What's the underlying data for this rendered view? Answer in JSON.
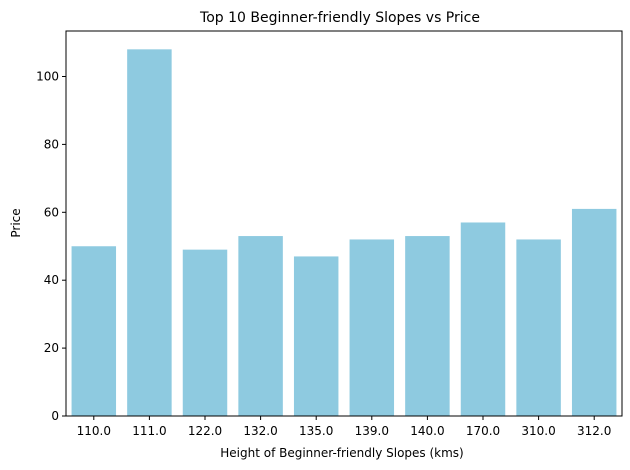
{
  "chart_data": {
    "type": "bar",
    "title": "Top 10 Beginner-friendly Slopes vs Price",
    "xlabel": "Height of Beginner-friendly Slopes (kms)",
    "ylabel": "Price",
    "categories": [
      "110.0",
      "111.0",
      "122.0",
      "132.0",
      "135.0",
      "139.0",
      "140.0",
      "170.0",
      "310.0",
      "312.0"
    ],
    "values": [
      50,
      108,
      49,
      53,
      47,
      52,
      53,
      57,
      52,
      61
    ],
    "ylim": [
      0,
      113.4
    ],
    "yticks": [
      0,
      20,
      40,
      60,
      80,
      100
    ],
    "grid": false,
    "legend": "none",
    "bar_color": "#8ecae0"
  }
}
